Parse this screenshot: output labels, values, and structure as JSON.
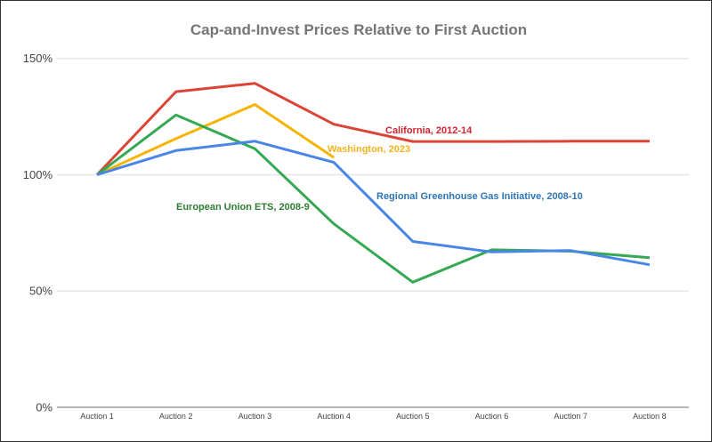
{
  "chart_data": {
    "type": "line",
    "title": "Cap-and-Invest Prices Relative to First Auction",
    "xlabel": "",
    "ylabel": "",
    "categories": [
      "Auction 1",
      "Auction 2",
      "Auction 3",
      "Auction 4",
      "Auction 5",
      "Auction 6",
      "Auction 7",
      "Auction 8"
    ],
    "ylim": [
      0,
      150
    ],
    "yticks": [
      0,
      50,
      100,
      150
    ],
    "ytick_labels": [
      "0%",
      "50%",
      "100%",
      "150%"
    ],
    "grid": true,
    "legend": "inline labels",
    "series": [
      {
        "name": "California, 2012-14",
        "color": "#db4437",
        "label_color": "#d0222f",
        "values": [
          100,
          135.7,
          139.3,
          121.7,
          114.3,
          114.3,
          114.4,
          114.4
        ]
      },
      {
        "name": "Washington, 2023",
        "color": "#f4b400",
        "label_color": "#f1b41f",
        "values": [
          100,
          115.5,
          130.2,
          107.4,
          null,
          null,
          null,
          null
        ]
      },
      {
        "name": "European Union ETS, 2008-9",
        "color": "#34a853",
        "label_color": "#2e7d32",
        "values": [
          100,
          125.7,
          111.2,
          78.9,
          53.8,
          67.7,
          67.1,
          64.3
        ]
      },
      {
        "name": "Regional Greenhouse Gas Initiative, 2008-10",
        "color": "#4a86e8",
        "label_color": "#2f75b5",
        "values": [
          100,
          110.4,
          114.4,
          105.3,
          71.3,
          66.8,
          67.4,
          61.3
        ]
      }
    ]
  }
}
